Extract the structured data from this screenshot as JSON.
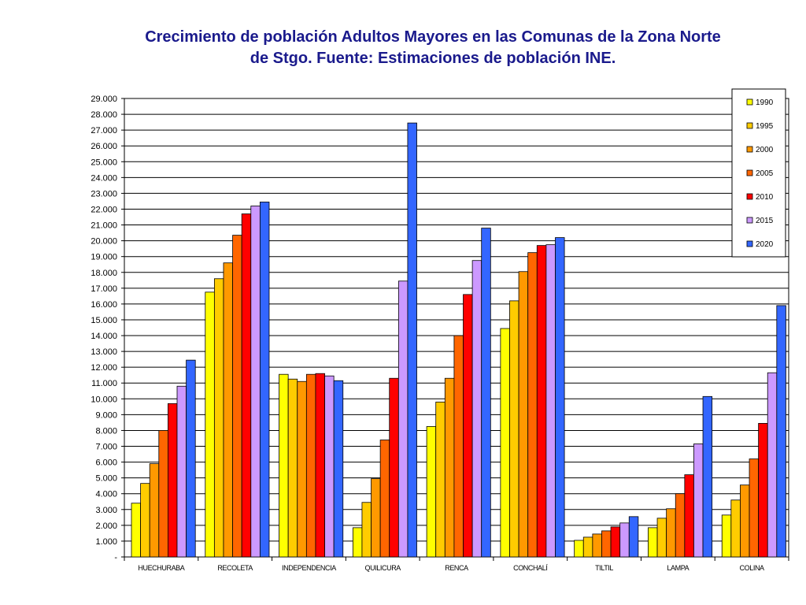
{
  "chart_data": {
    "type": "bar",
    "title_line1": "Crecimiento de población Adultos Mayores en las Comunas de la Zona Norte",
    "title_line2": "de Stgo. Fuente: Estimaciones de población INE.",
    "xlabel": "",
    "ylabel": "",
    "ylim": [
      0,
      29000
    ],
    "y_ticks": [
      "-",
      "1.000",
      "2.000",
      "3.000",
      "4.000",
      "5.000",
      "6.000",
      "7.000",
      "8.000",
      "9.000",
      "10.000",
      "11.000",
      "12.000",
      "13.000",
      "14.000",
      "15.000",
      "16.000",
      "17.000",
      "18.000",
      "19.000",
      "20.000",
      "21.000",
      "22.000",
      "23.000",
      "24.000",
      "25.000",
      "26.000",
      "27.000",
      "28.000",
      "29.000"
    ],
    "grid": true,
    "legend_position": "top-right",
    "categories": [
      "HUECHURABA",
      "RECOLETA",
      "INDEPENDENCIA",
      "QUILICURA",
      "RENCA",
      "CONCHALÍ",
      "TILTIL",
      "LAMPA",
      "COLINA"
    ],
    "series": [
      {
        "name": "1990",
        "color": "#ffff00",
        "values": [
          3400,
          16750,
          11550,
          1850,
          8250,
          14450,
          1050,
          1850,
          2650
        ]
      },
      {
        "name": "1995",
        "color": "#ffcc00",
        "values": [
          4650,
          17600,
          11250,
          3450,
          9800,
          16200,
          1250,
          2450,
          3600
        ]
      },
      {
        "name": "2000",
        "color": "#ff9900",
        "values": [
          5900,
          18600,
          11100,
          4950,
          11300,
          18050,
          1450,
          3050,
          4550
        ]
      },
      {
        "name": "2005",
        "color": "#ff6600",
        "values": [
          8000,
          20350,
          11550,
          7400,
          14000,
          19250,
          1650,
          4000,
          6200
        ]
      },
      {
        "name": "2010",
        "color": "#ff0000",
        "values": [
          9700,
          21700,
          11600,
          11300,
          16600,
          19700,
          1900,
          5200,
          8450
        ]
      },
      {
        "name": "2015",
        "color": "#cc99ff",
        "values": [
          10800,
          22200,
          11450,
          17450,
          18750,
          19750,
          2150,
          7150,
          11650
        ]
      },
      {
        "name": "2020",
        "color": "#3366ff",
        "values": [
          12450,
          22450,
          11150,
          27450,
          20800,
          20200,
          2550,
          10150,
          15900
        ]
      }
    ]
  }
}
